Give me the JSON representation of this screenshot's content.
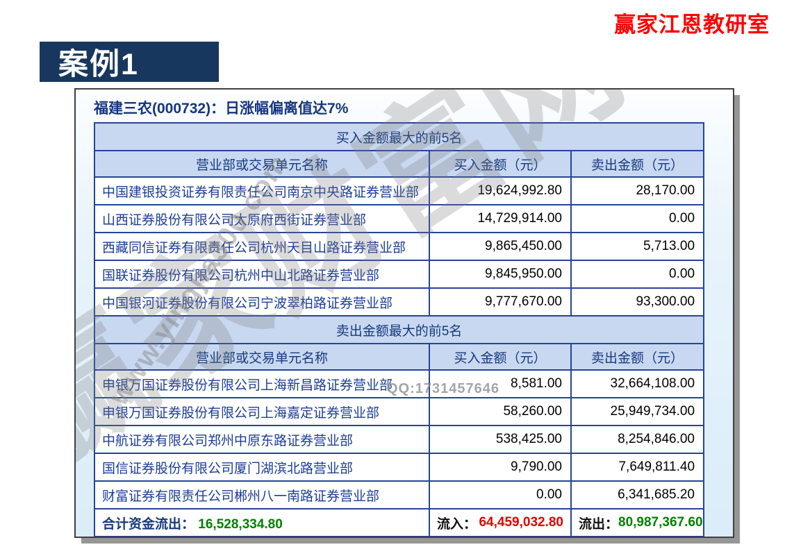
{
  "brand": {
    "title": "赢家江恩教研室"
  },
  "case": {
    "label": "案例1"
  },
  "panel": {
    "title": "福建三农(000732)：日涨幅偏离值达7%"
  },
  "table": {
    "buy_section_title": "买入金额最大的前5名",
    "sell_section_title": "卖出金额最大的前5名",
    "columns": [
      "营业部或交易单元名称",
      "买入金额（元）",
      "卖出金额（元）"
    ],
    "buy_rows": [
      {
        "name": "中国建银投资证券有限责任公司南京中央路证券营业部",
        "buy": "19,624,992.80",
        "sell": "28,170.00"
      },
      {
        "name": "山西证券股份有限公司太原府西街证券营业部",
        "buy": "14,729,914.00",
        "sell": "0.00"
      },
      {
        "name": "西藏同信证券有限责任公司杭州天目山路证券营业部",
        "buy": "9,865,450.00",
        "sell": "5,713.00"
      },
      {
        "name": "国联证券股份有限公司杭州中山北路证券营业部",
        "buy": "9,845,950.00",
        "sell": "0.00"
      },
      {
        "name": "中国银河证券股份有限公司宁波翠柏路证券营业部",
        "buy": "9,777,670.00",
        "sell": "93,300.00"
      }
    ],
    "sell_rows": [
      {
        "name": "申银万国证券股份有限公司上海新昌路证券营业部",
        "buy": "8,581.00",
        "sell": "32,664,108.00"
      },
      {
        "name": "申银万国证券股份有限公司上海嘉定证券营业部",
        "buy": "58,260.00",
        "sell": "25,949,734.00"
      },
      {
        "name": "中航证券有限公司郑州中原东路证券营业部",
        "buy": "538,425.00",
        "sell": "8,254,846.00"
      },
      {
        "name": "国信证券股份有限公司厦门湖滨北路营业部",
        "buy": "9,790.00",
        "sell": "7,649,811.40"
      },
      {
        "name": "财富证券有限责任公司郴州八一南路证券营业部",
        "buy": "0.00",
        "sell": "6,341,685.20"
      }
    ],
    "footer": {
      "total_label": "合计资金流出：",
      "total_value": "16,528,334.80",
      "inflow_label": "流入：",
      "inflow_value": "64,459,032.80",
      "outflow_label": "流出：",
      "outflow_value": "80,987,367.60"
    }
  },
  "watermark": {
    "big_text": "赢家财富网",
    "url_text": "www.yingjia300.com",
    "qq_text": "QQ:1731457646"
  },
  "colors": {
    "banner_navy": "#17375e",
    "brand_red": "#fe0000",
    "table_border_blue": "#26439a",
    "header_bg_blue": "#c8d8f0",
    "header_text_blue": "#17397f",
    "row_name_blue": "#1c3d96",
    "value_green": "#008000",
    "value_red": "#e60000"
  }
}
